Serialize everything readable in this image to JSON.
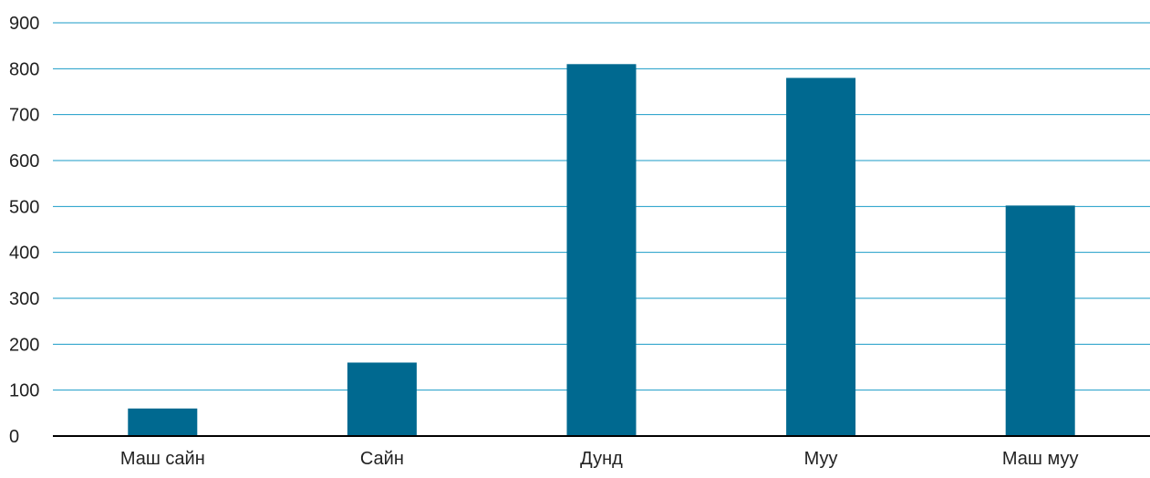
{
  "chart_data": {
    "type": "bar",
    "categories": [
      "Маш сайн",
      "Сайн",
      "Дунд",
      "Муу",
      "Маш муу"
    ],
    "values": [
      60,
      160,
      810,
      780,
      502
    ],
    "ylim": [
      0,
      900
    ],
    "yticks": [
      0,
      100,
      200,
      300,
      400,
      500,
      600,
      700,
      800,
      900
    ],
    "grid": true,
    "colors": {
      "bar": "#006990",
      "grid": "#1a9bc7",
      "axis": "#000000"
    }
  }
}
